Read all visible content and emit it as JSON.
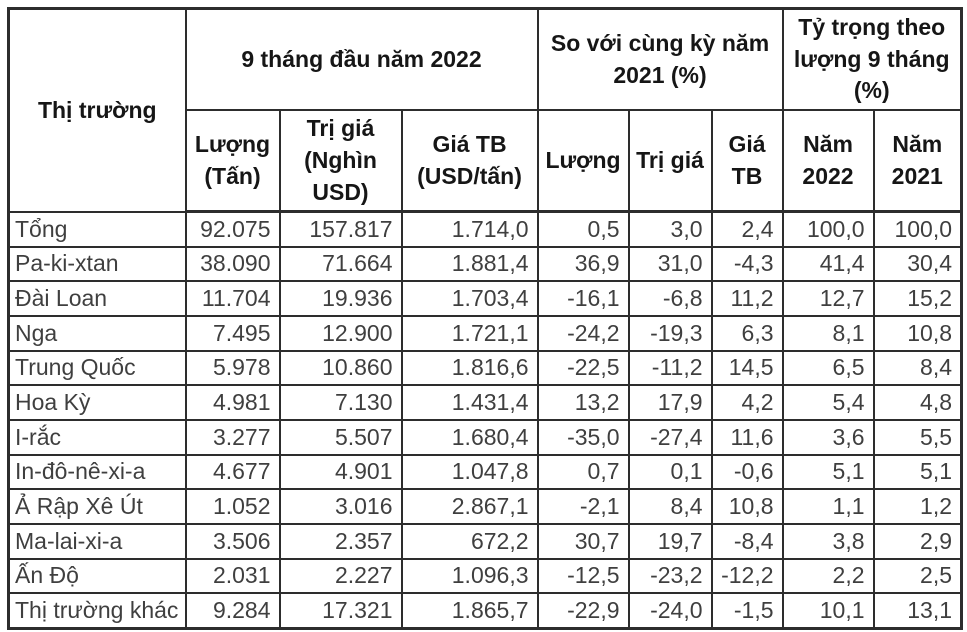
{
  "page": {
    "background_color": "#ffffff",
    "border_color": "#2d2d2d",
    "header_text_color": "#161616",
    "data_text_color": "#3f3f3f"
  },
  "table": {
    "corner_header": "Thị trường",
    "column_groups": [
      {
        "label": "9 tháng đầu năm 2022",
        "colspan": 3
      },
      {
        "label": "So với cùng kỳ năm 2021 (%)",
        "colspan": 3
      },
      {
        "label": "Tỷ trọng theo lượng 9 tháng (%)",
        "colspan": 2
      }
    ],
    "subheaders": [
      "Lượng (Tấn)",
      "Trị giá (Nghìn USD)",
      "Giá TB (USD/tấn)",
      "Lượng",
      "Trị giá",
      "Giá TB",
      "Năm 2022",
      "Năm 2021"
    ],
    "rows": [
      {
        "market": "Tổng",
        "values": [
          "92.075",
          "157.817",
          "1.714,0",
          "0,5",
          "3,0",
          "2,4",
          "100,0",
          "100,0"
        ]
      },
      {
        "market": "Pa-ki-xtan",
        "values": [
          "38.090",
          "71.664",
          "1.881,4",
          "36,9",
          "31,0",
          "-4,3",
          "41,4",
          "30,4"
        ]
      },
      {
        "market": "Đài Loan",
        "values": [
          "11.704",
          "19.936",
          "1.703,4",
          "-16,1",
          "-6,8",
          "11,2",
          "12,7",
          "15,2"
        ]
      },
      {
        "market": "Nga",
        "values": [
          "7.495",
          "12.900",
          "1.721,1",
          "-24,2",
          "-19,3",
          "6,3",
          "8,1",
          "10,8"
        ]
      },
      {
        "market": "Trung Quốc",
        "values": [
          "5.978",
          "10.860",
          "1.816,6",
          "-22,5",
          "-11,2",
          "14,5",
          "6,5",
          "8,4"
        ]
      },
      {
        "market": "Hoa Kỳ",
        "values": [
          "4.981",
          "7.130",
          "1.431,4",
          "13,2",
          "17,9",
          "4,2",
          "5,4",
          "4,8"
        ]
      },
      {
        "market": "I-rắc",
        "values": [
          "3.277",
          "5.507",
          "1.680,4",
          "-35,0",
          "-27,4",
          "11,6",
          "3,6",
          "5,5"
        ]
      },
      {
        "market": "In-đô-nê-xi-a",
        "values": [
          "4.677",
          "4.901",
          "1.047,8",
          "0,7",
          "0,1",
          "-0,6",
          "5,1",
          "5,1"
        ]
      },
      {
        "market": "Ả Rập Xê Út",
        "values": [
          "1.052",
          "3.016",
          "2.867,1",
          "-2,1",
          "8,4",
          "10,8",
          "1,1",
          "1,2"
        ]
      },
      {
        "market": "Ma-lai-xi-a",
        "values": [
          "3.506",
          "2.357",
          "672,2",
          "30,7",
          "19,7",
          "-8,4",
          "3,8",
          "2,9"
        ]
      },
      {
        "market": "Ấn Độ",
        "values": [
          "2.031",
          "2.227",
          "1.096,3",
          "-12,5",
          "-23,2",
          "-12,2",
          "2,2",
          "2,5"
        ]
      },
      {
        "market": "Thị trường khác",
        "values": [
          "9.284",
          "17.321",
          "1.865,7",
          "-22,9",
          "-24,0",
          "-1,5",
          "10,1",
          "13,1"
        ]
      }
    ]
  }
}
